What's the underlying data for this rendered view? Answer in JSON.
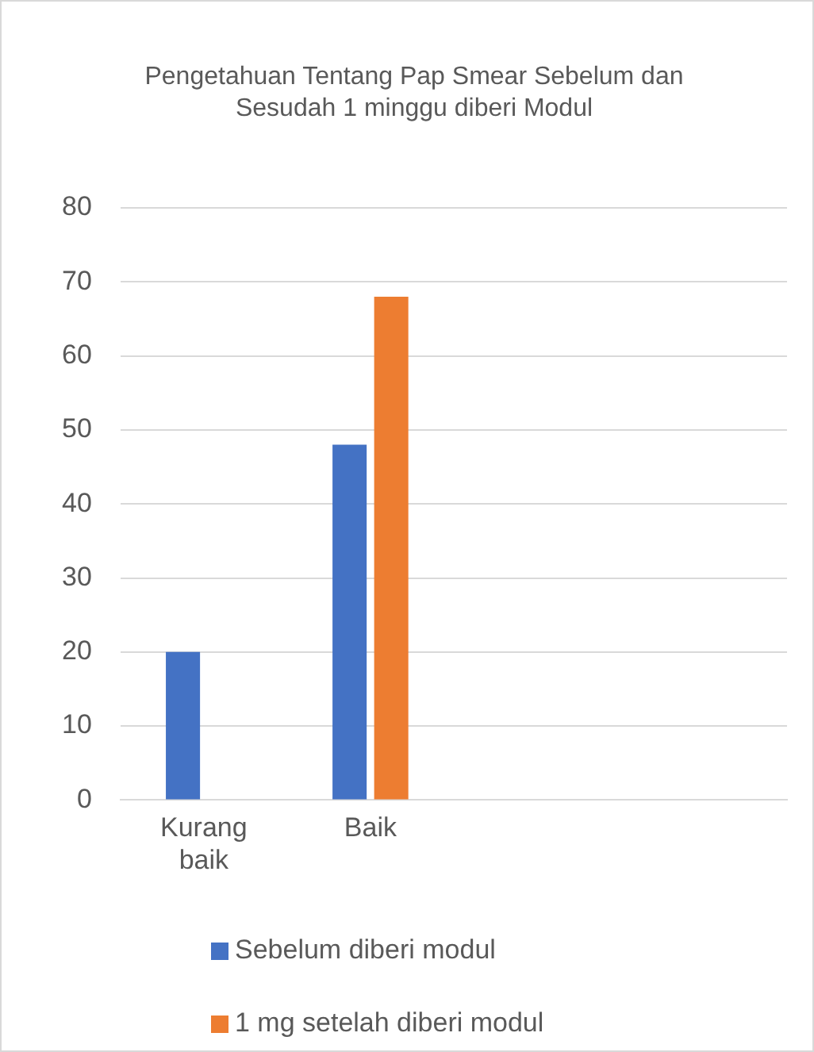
{
  "chart_data": {
    "type": "bar",
    "title": "Pengetahuan Tentang Pap Smear Sebelum dan Sesudah 1 minggu diberi Modul",
    "categories": [
      "Kurang baik",
      "Baik",
      null,
      null
    ],
    "series": [
      {
        "name": "Sebelum diberi modul",
        "color": "#4472c4",
        "values": [
          20,
          48,
          null,
          null
        ]
      },
      {
        "name": "1 mg setelah diberi modul",
        "color": "#ed7d31",
        "values": [
          0,
          68,
          null,
          null
        ]
      }
    ],
    "ylim": [
      0,
      80
    ],
    "yticks": [
      0,
      10,
      20,
      30,
      40,
      50,
      60,
      70,
      80
    ],
    "grid": "y",
    "legend": "bottom"
  }
}
